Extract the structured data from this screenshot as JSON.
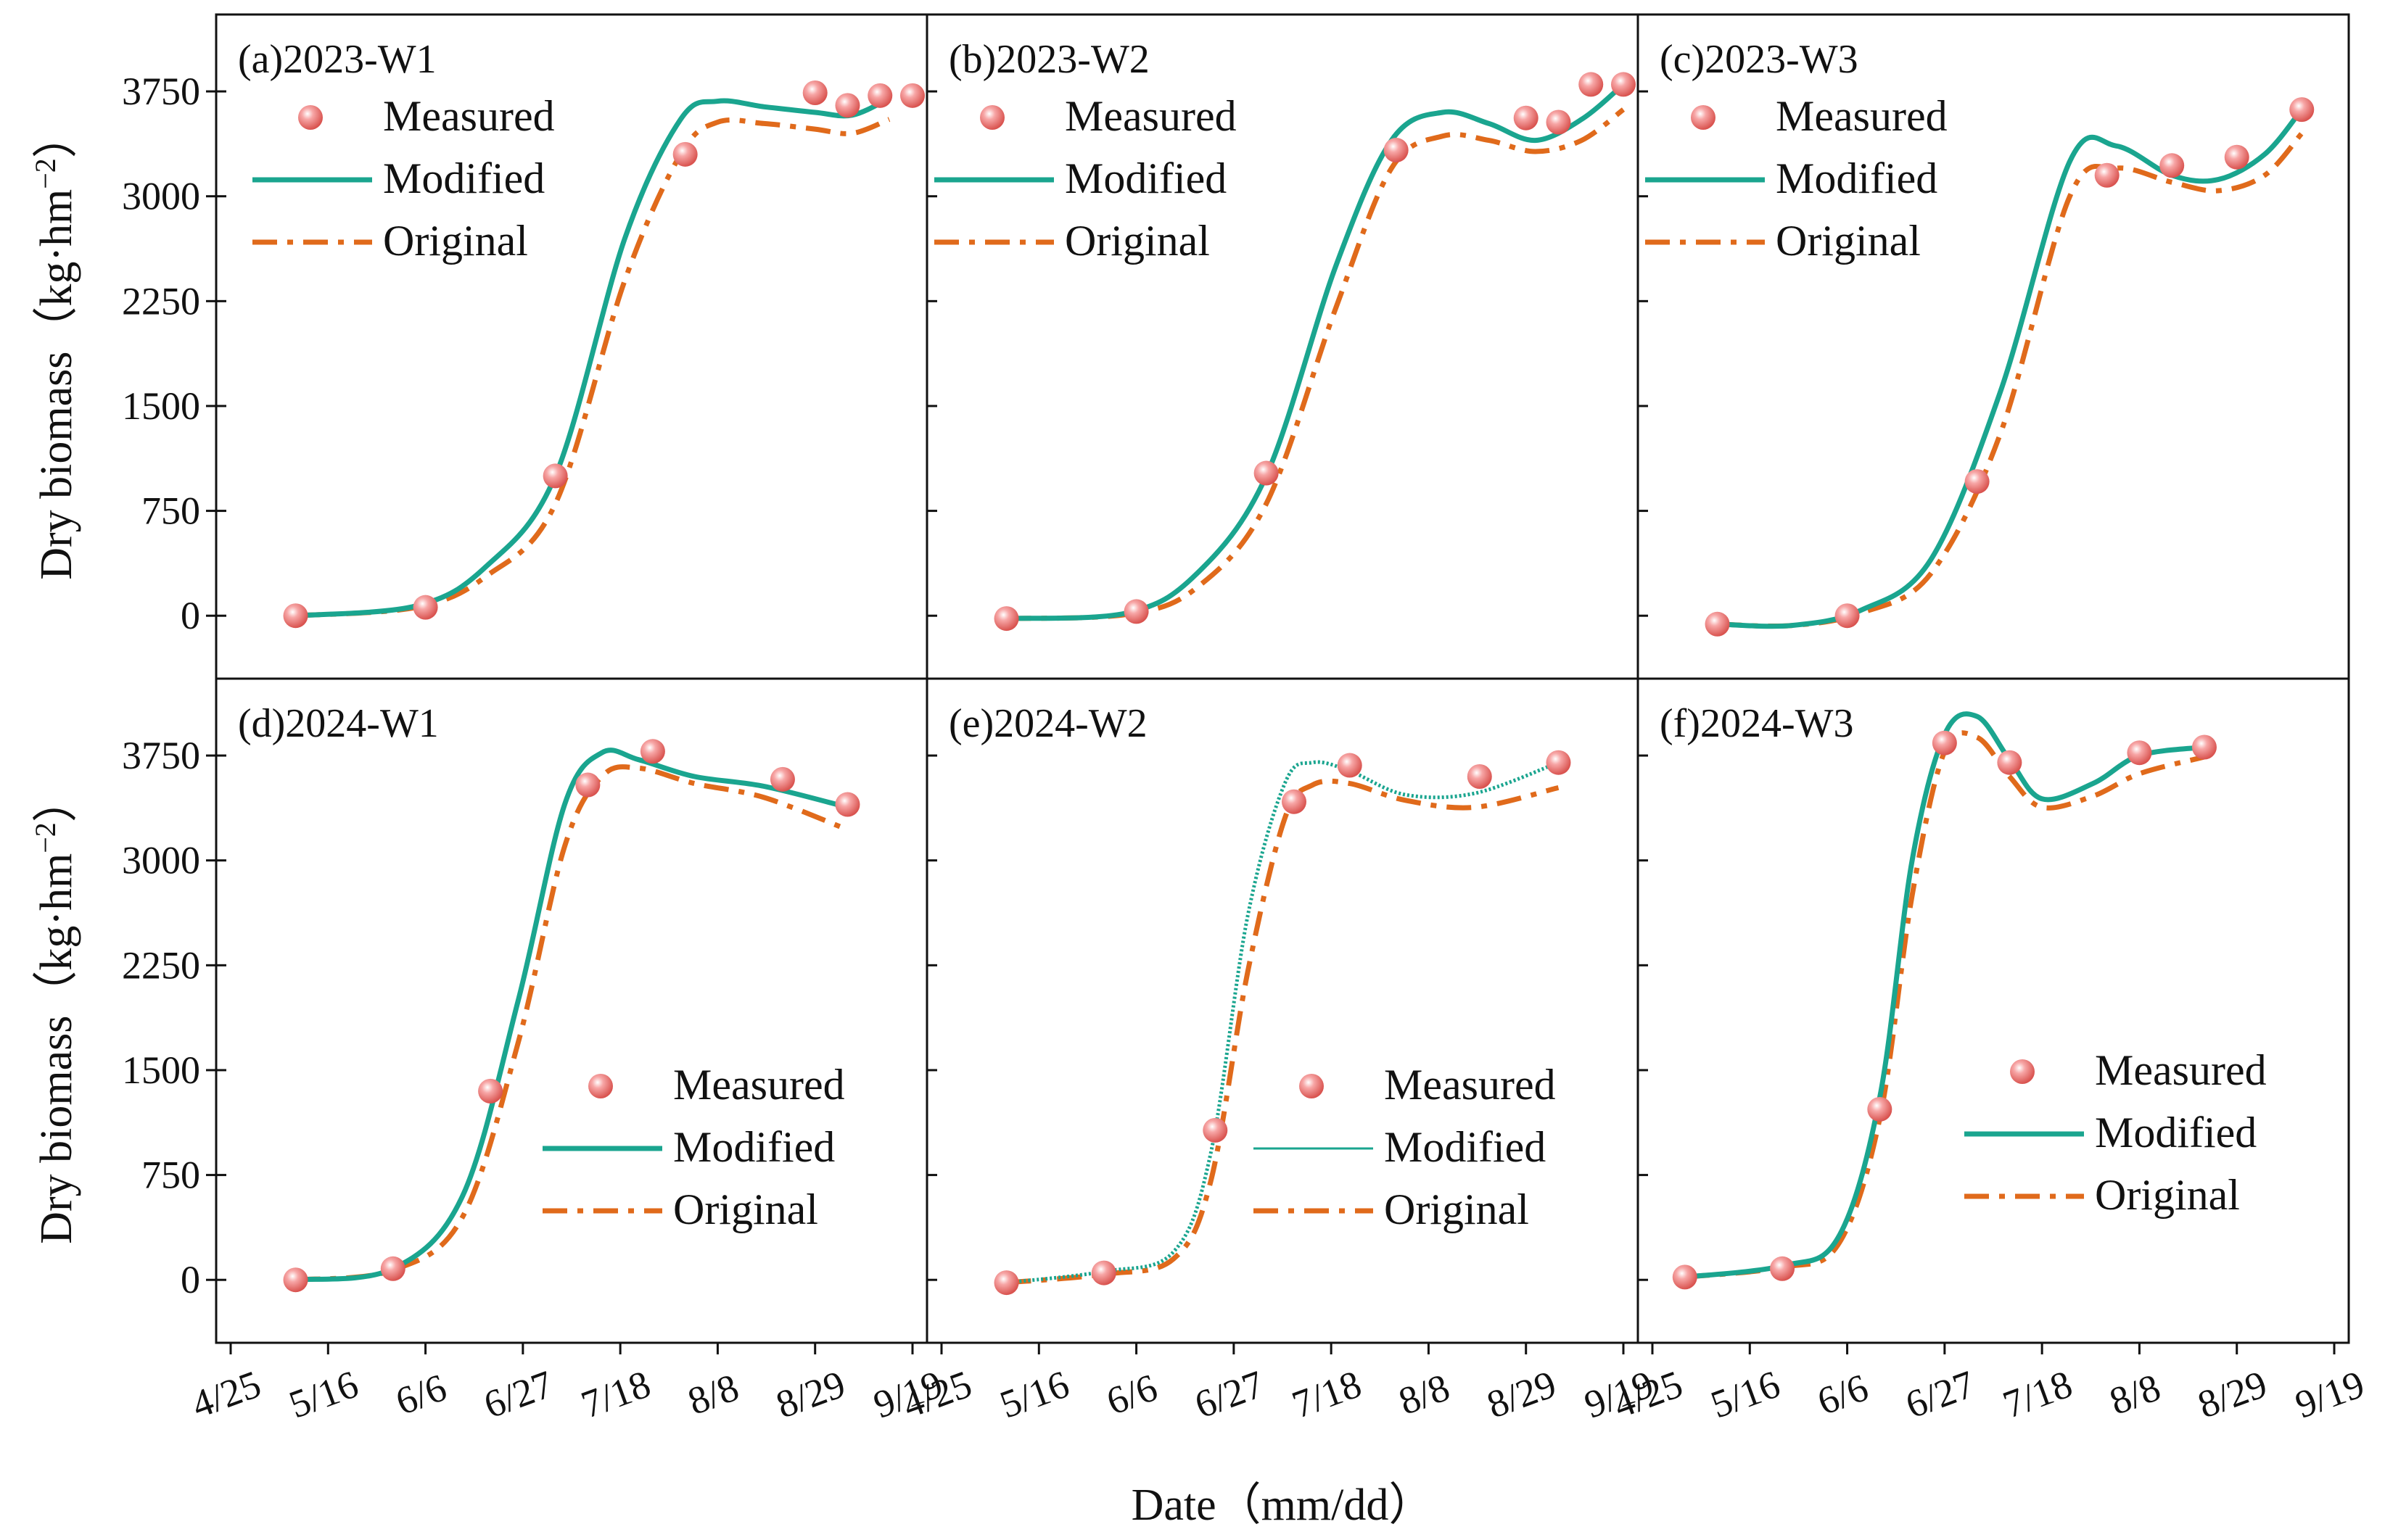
{
  "figure": {
    "xlabel": "Date（mm/dd）",
    "ylabel_main": "Dry biomass",
    "ylabel_unit_prefix": "（kg·hm",
    "ylabel_unit_exp": "−2",
    "ylabel_unit_suffix": "）",
    "colors": {
      "measured": "#f08080",
      "modified": "#1aa58f",
      "original": "#e06a1b",
      "axis": "#111111"
    }
  },
  "chart_data": [
    {
      "type": "line",
      "title": "(a)2023-W1",
      "legend_pos": "top-left",
      "legend": [
        "Measured",
        "Modified",
        "Original"
      ],
      "x_ticks": [
        "4/25",
        "5/16",
        "6/6",
        "6/27",
        "7/18",
        "8/8",
        "8/29",
        "9/19"
      ],
      "x_range": [
        0,
        147
      ],
      "y_range": [
        -450,
        4300
      ],
      "y_ticks": [
        0,
        750,
        1500,
        2250,
        3000,
        3750
      ],
      "measured": {
        "x": [
          14,
          42,
          70,
          98,
          126,
          133,
          140,
          147
        ],
        "y": [
          0,
          60,
          1000,
          3300,
          3740,
          3650,
          3720,
          3720
        ]
      },
      "modified": {
        "x": [
          14,
          40,
          55,
          70,
          85,
          97,
          105,
          115,
          126,
          134,
          142
        ],
        "y": [
          0,
          70,
          350,
          1000,
          2700,
          3550,
          3680,
          3640,
          3600,
          3580,
          3700
        ]
      },
      "original": {
        "x": [
          14,
          40,
          55,
          70,
          85,
          97,
          105,
          115,
          126,
          134,
          142
        ],
        "y": [
          0,
          60,
          280,
          800,
          2400,
          3300,
          3530,
          3520,
          3480,
          3450,
          3550
        ]
      }
    },
    {
      "type": "line",
      "title": "(b)2023-W2",
      "legend_pos": "top-left",
      "legend": [
        "Measured",
        "Modified",
        "Original"
      ],
      "x_ticks": [
        "4/25",
        "5/16",
        "6/6",
        "6/27",
        "7/18",
        "8/8",
        "8/29",
        "9/19"
      ],
      "x_range": [
        0,
        147
      ],
      "y_range": [
        -450,
        4300
      ],
      "y_ticks": [
        0,
        750,
        1500,
        2250,
        3000,
        3750
      ],
      "measured": {
        "x": [
          14,
          42,
          70,
          98,
          126,
          133,
          140,
          147
        ],
        "y": [
          -20,
          30,
          1020,
          3330,
          3560,
          3530,
          3800,
          3800
        ]
      },
      "modified": {
        "x": [
          14,
          40,
          55,
          70,
          85,
          97,
          108,
          118,
          128,
          138,
          147
        ],
        "y": [
          -20,
          20,
          300,
          1000,
          2500,
          3400,
          3600,
          3520,
          3400,
          3550,
          3800
        ]
      },
      "original": {
        "x": [
          14,
          40,
          55,
          70,
          85,
          97,
          108,
          118,
          128,
          138,
          147
        ],
        "y": [
          -20,
          10,
          200,
          800,
          2200,
          3200,
          3430,
          3400,
          3320,
          3400,
          3620
        ]
      }
    },
    {
      "type": "line",
      "title": "(c)2023-W3",
      "legend_pos": "top-left",
      "legend": [
        "Measured",
        "Modified",
        "Original"
      ],
      "x_ticks": [
        "4/25",
        "5/16",
        "6/6",
        "6/27",
        "7/18",
        "8/8",
        "8/29",
        "9/19"
      ],
      "x_range": [
        0,
        147
      ],
      "y_range": [
        -450,
        4300
      ],
      "y_ticks": [
        0,
        750,
        1500,
        2250,
        3000,
        3750
      ],
      "measured": {
        "x": [
          14,
          42,
          70,
          98,
          112,
          126,
          140
        ],
        "y": [
          -60,
          0,
          960,
          3150,
          3220,
          3280,
          3620
        ]
      },
      "modified": {
        "x": [
          14,
          30,
          45,
          60,
          75,
          90,
          100,
          112,
          122,
          132,
          140
        ],
        "y": [
          -60,
          -70,
          40,
          400,
          1600,
          3250,
          3360,
          3150,
          3120,
          3300,
          3620
        ]
      },
      "original": {
        "x": [
          14,
          30,
          45,
          60,
          75,
          90,
          100,
          112,
          122,
          132,
          140
        ],
        "y": [
          -60,
          -70,
          20,
          300,
          1300,
          3000,
          3200,
          3100,
          3040,
          3150,
          3450
        ]
      }
    },
    {
      "type": "line",
      "title": "(d)2024-W1",
      "legend_pos": "bottom-right",
      "legend": [
        "Measured",
        "Modified",
        "Original"
      ],
      "x_ticks": [
        "4/25",
        "5/16",
        "6/6",
        "6/27",
        "7/18",
        "8/8",
        "8/29",
        "9/19"
      ],
      "x_range": [
        0,
        147
      ],
      "y_range": [
        -450,
        4300
      ],
      "y_ticks": [
        0,
        750,
        1500,
        2250,
        3000,
        3750
      ],
      "measured": {
        "x": [
          14,
          35,
          56,
          77,
          91,
          119,
          133
        ],
        "y": [
          0,
          80,
          1350,
          3540,
          3780,
          3580,
          3400
        ]
      },
      "modified": {
        "x": [
          14,
          35,
          50,
          62,
          72,
          80,
          88,
          100,
          115,
          133
        ],
        "y": [
          0,
          80,
          600,
          2000,
          3400,
          3770,
          3720,
          3600,
          3530,
          3380
        ]
      },
      "original": {
        "x": [
          14,
          35,
          50,
          62,
          72,
          80,
          88,
          100,
          115,
          133
        ],
        "y": [
          0,
          70,
          450,
          1700,
          3100,
          3600,
          3660,
          3550,
          3450,
          3220
        ]
      }
    },
    {
      "type": "line",
      "title": "(e)2024-W2",
      "legend_pos": "bottom-right",
      "legend": [
        "Measured",
        "Modified",
        "Original"
      ],
      "x_ticks": [
        "4/25",
        "5/16",
        "6/6",
        "6/27",
        "7/18",
        "8/8",
        "8/29",
        "9/19"
      ],
      "x_range": [
        0,
        147
      ],
      "y_range": [
        -450,
        4300
      ],
      "y_ticks": [
        0,
        750,
        1500,
        2250,
        3000,
        3750
      ],
      "measured": {
        "x": [
          14,
          35,
          59,
          76,
          88,
          116,
          133
        ],
        "y": [
          -20,
          50,
          1070,
          3420,
          3680,
          3600,
          3700
        ]
      },
      "modified": {
        "x": [
          14,
          35,
          50,
          58,
          66,
          74,
          80,
          88,
          100,
          115,
          133
        ],
        "y": [
          -20,
          60,
          200,
          900,
          2600,
          3550,
          3700,
          3640,
          3470,
          3480,
          3700
        ]
      },
      "original": {
        "x": [
          14,
          35,
          50,
          58,
          66,
          74,
          80,
          88,
          100,
          115,
          133
        ],
        "y": [
          -20,
          40,
          150,
          700,
          2200,
          3300,
          3540,
          3550,
          3430,
          3380,
          3520
        ]
      }
    },
    {
      "type": "line",
      "title": "(f)2024-W3",
      "legend_pos": "bottom-right",
      "legend": [
        "Measured",
        "Modified",
        "Original"
      ],
      "x_ticks": [
        "4/25",
        "5/16",
        "6/6",
        "6/27",
        "7/18",
        "8/8",
        "8/29",
        "9/19"
      ],
      "x_range": [
        0,
        147
      ],
      "y_range": [
        -450,
        4300
      ],
      "y_ticks": [
        0,
        750,
        1500,
        2250,
        3000,
        3750
      ],
      "measured": {
        "x": [
          7,
          28,
          49,
          63,
          77,
          105,
          119
        ],
        "y": [
          20,
          80,
          1220,
          3840,
          3700,
          3770,
          3810
        ]
      },
      "modified": {
        "x": [
          7,
          28,
          40,
          49,
          56,
          63,
          70,
          77,
          84,
          95,
          105,
          119
        ],
        "y": [
          20,
          100,
          300,
          1300,
          3000,
          3900,
          4030,
          3720,
          3440,
          3550,
          3750,
          3810
        ]
      },
      "original": {
        "x": [
          7,
          28,
          40,
          49,
          56,
          63,
          70,
          77,
          84,
          95,
          105,
          119
        ],
        "y": [
          20,
          90,
          250,
          1150,
          2750,
          3780,
          3880,
          3600,
          3380,
          3460,
          3620,
          3740
        ]
      }
    }
  ]
}
